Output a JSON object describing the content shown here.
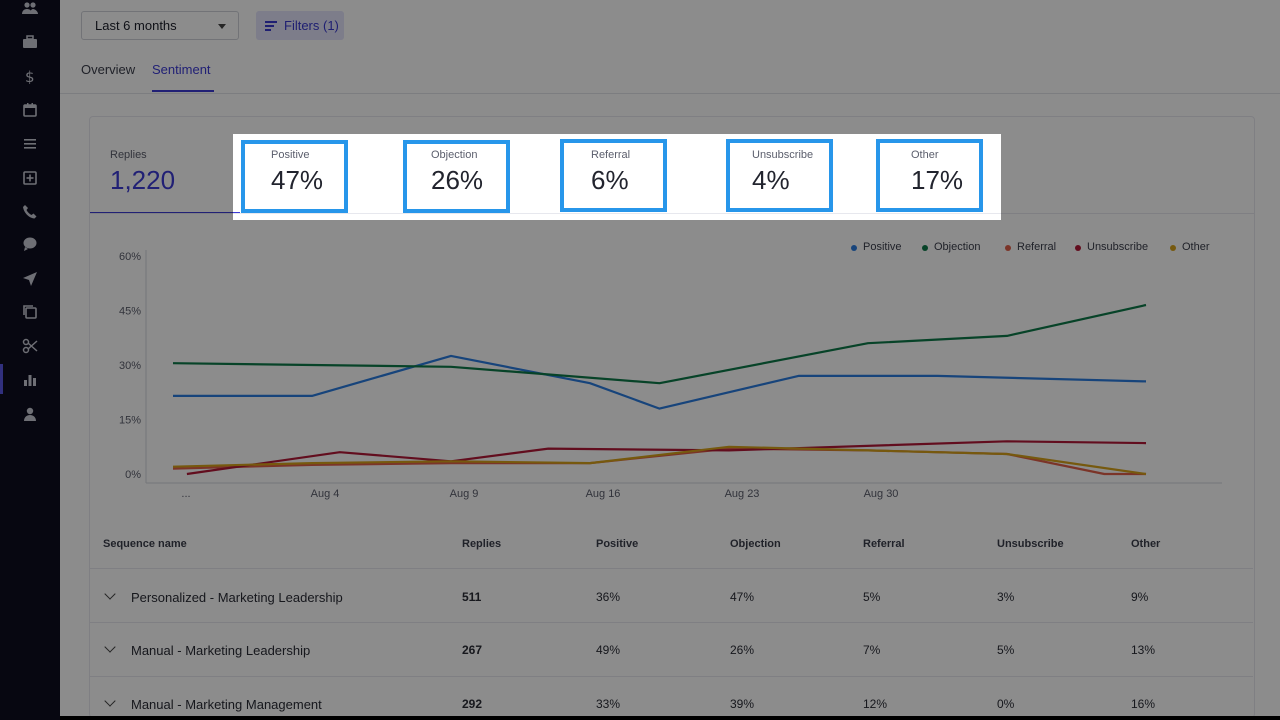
{
  "sidebar": {
    "icons": [
      "people-icon",
      "briefcase-icon",
      "dollar-icon",
      "calendar-icon",
      "tasks-icon",
      "add-box-icon",
      "phone-icon",
      "chat-icon",
      "send-icon",
      "copy-icon",
      "scissors-icon",
      "bar-chart-icon",
      "person-icon"
    ],
    "active": "bar-chart-icon"
  },
  "toolbar": {
    "date_range": "Last 6 months",
    "filters_label": "Filters (1)"
  },
  "tabs": [
    {
      "label": "Overview"
    },
    {
      "label": "Sentiment",
      "active": true
    }
  ],
  "stats": {
    "replies": {
      "label": "Replies",
      "value": "1,220"
    },
    "items": [
      {
        "label": "Positive",
        "value": "47%"
      },
      {
        "label": "Objection",
        "value": "26%"
      },
      {
        "label": "Referral",
        "value": "6%"
      },
      {
        "label": "Unsubscribe",
        "value": "4%"
      },
      {
        "label": "Other",
        "value": "17%"
      }
    ]
  },
  "chart_data": {
    "type": "line",
    "x": [
      "...",
      "Aug 4",
      "Aug 9",
      "Aug 16",
      "Aug 23",
      "Aug 30"
    ],
    "yticks": [
      "0%",
      "15%",
      "30%",
      "45%",
      "60%"
    ],
    "ylim": [
      0,
      60
    ],
    "legend_position": "top-right",
    "series": [
      {
        "name": "Positive",
        "color": "#2a7de1",
        "values": [
          [
            0,
            21.5
          ],
          [
            1,
            21.5
          ],
          [
            2,
            32.5
          ],
          [
            3,
            25
          ],
          [
            3.5,
            18
          ],
          [
            4.5,
            27
          ],
          [
            5.5,
            27
          ],
          [
            7,
            25.5
          ]
        ]
      },
      {
        "name": "Objection",
        "color": "#0e7a4a",
        "values": [
          [
            0,
            30.5
          ],
          [
            1,
            30
          ],
          [
            2,
            29.5
          ],
          [
            3.5,
            25
          ],
          [
            5,
            36
          ],
          [
            6,
            38
          ],
          [
            7,
            46.5
          ]
        ]
      },
      {
        "name": "Referral",
        "color": "#e0604a",
        "values": [
          [
            0,
            1.5
          ],
          [
            1,
            2.5
          ],
          [
            2,
            3
          ],
          [
            3,
            3
          ],
          [
            4,
            7
          ],
          [
            5,
            6.5
          ],
          [
            6,
            5.5
          ],
          [
            6.7,
            0
          ],
          [
            7,
            0
          ]
        ]
      },
      {
        "name": "Unsubscribe",
        "color": "#b31937",
        "values": [
          [
            0.1,
            0
          ],
          [
            1.2,
            6
          ],
          [
            2,
            3.5
          ],
          [
            2.7,
            7
          ],
          [
            4,
            6.5
          ],
          [
            6,
            9
          ],
          [
            7,
            8.5
          ]
        ]
      },
      {
        "name": "Other",
        "color": "#d8a31a",
        "values": [
          [
            0,
            2
          ],
          [
            1,
            3
          ],
          [
            2,
            3.5
          ],
          [
            3,
            3
          ],
          [
            4,
            7.5
          ],
          [
            5,
            6.5
          ],
          [
            6,
            5.5
          ],
          [
            7,
            0
          ]
        ]
      }
    ]
  },
  "table": {
    "headers": [
      "Sequence name",
      "Replies",
      "Positive",
      "Objection",
      "Referral",
      "Unsubscribe",
      "Other"
    ],
    "rows": [
      [
        "Personalized - Marketing Leadership",
        "511",
        "36%",
        "47%",
        "5%",
        "3%",
        "9%"
      ],
      [
        "Manual - Marketing Leadership",
        "267",
        "49%",
        "26%",
        "7%",
        "5%",
        "13%"
      ],
      [
        "Manual - Marketing Management",
        "292",
        "33%",
        "39%",
        "12%",
        "0%",
        "16%"
      ]
    ]
  }
}
